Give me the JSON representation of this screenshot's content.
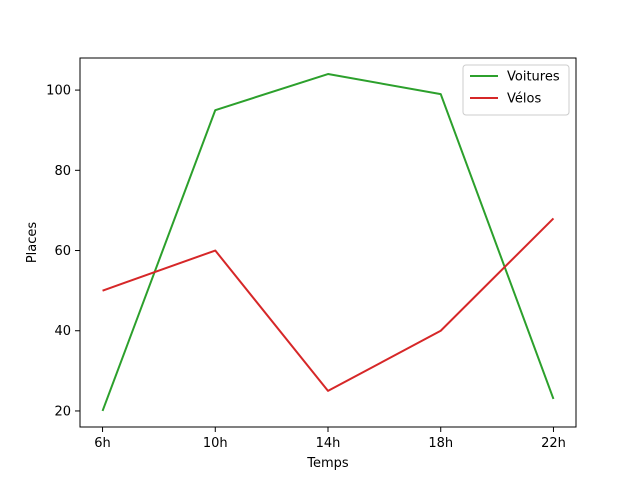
{
  "chart_data": {
    "type": "line",
    "title": "",
    "categories": [
      "6h",
      "10h",
      "14h",
      "18h",
      "22h"
    ],
    "xlabel": "Temps",
    "ylabel": "Places",
    "ylim": [
      16,
      108
    ],
    "yticks": [
      20,
      40,
      60,
      80,
      100
    ],
    "grid": false,
    "legend": "top-right",
    "series": [
      {
        "name": "Voitures",
        "color": "#2ca02c",
        "values": [
          20,
          95,
          104,
          99,
          23
        ]
      },
      {
        "name": "Vélos",
        "color": "#d62728",
        "values": [
          50,
          60,
          25,
          40,
          68
        ]
      }
    ]
  }
}
